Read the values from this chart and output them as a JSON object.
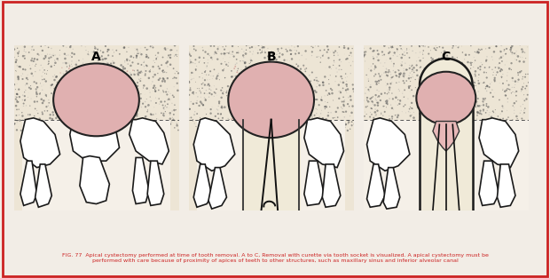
{
  "background_color": "#f2ede6",
  "border_color": "#cc2222",
  "panel_bg": "#e8e0d0",
  "stipple_color": "#666666",
  "cyst_fill": "#e8b8b8",
  "cyst_edge": "#222222",
  "tooth_fill": "#ffffff",
  "tooth_edge": "#1a1a1a",
  "labels": [
    "A",
    "B",
    "C"
  ],
  "caption_color": "#cc2222",
  "caption_text": "FIG. 77  Apical cystectomy performed at time of tooth removal. A to C, Removal with curette via tooth socket is visualized. A apical cystectomy must be\nperformed with care because of proximity of apices of teeth to other structures, such as maxillary sinus and inferior alveolar canal",
  "fig_width": 6.2,
  "fig_height": 3.13,
  "dpi": 100
}
